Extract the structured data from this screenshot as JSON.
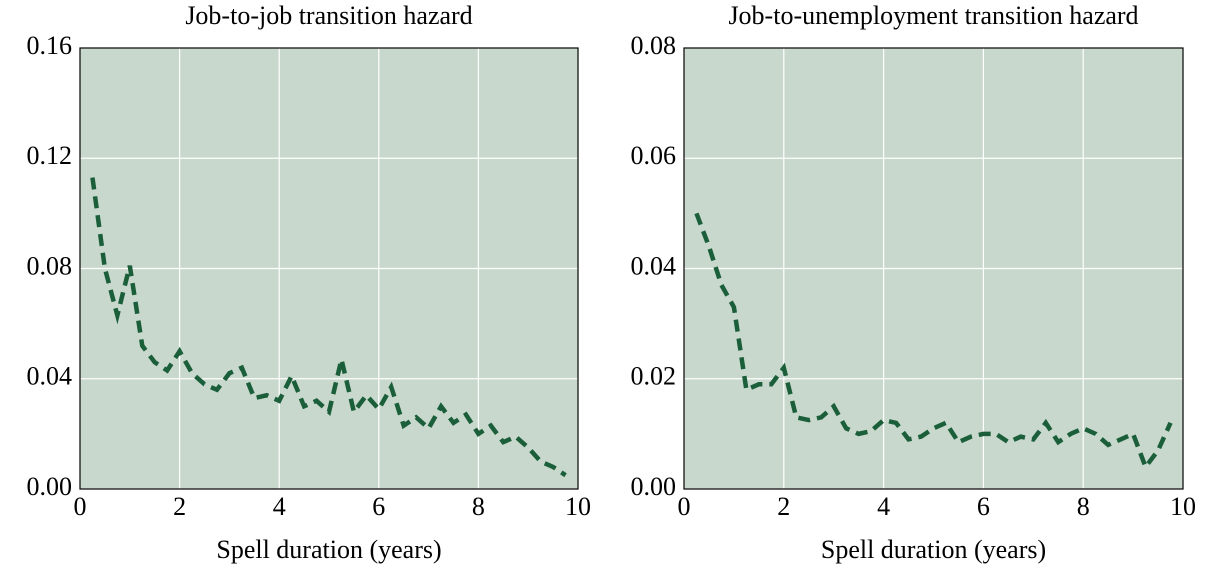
{
  "chart_data": [
    {
      "type": "line",
      "title": "Job-to-job transition hazard",
      "x_label": "Spell duration (years)",
      "x": [
        0.25,
        0.5,
        0.75,
        1,
        1.25,
        1.5,
        1.75,
        2,
        2.25,
        2.5,
        2.75,
        3,
        3.25,
        3.5,
        3.75,
        4,
        4.25,
        4.5,
        4.75,
        5,
        5.25,
        5.5,
        5.75,
        6,
        6.25,
        6.5,
        6.75,
        7,
        7.25,
        7.5,
        7.75,
        8,
        8.25,
        8.5,
        8.75,
        9,
        9.25,
        9.5,
        9.75
      ],
      "series": [
        {
          "color": "#1b5e3a",
          "values": [
            0.113,
            0.08,
            0.063,
            0.081,
            0.052,
            0.046,
            0.043,
            0.05,
            0.042,
            0.038,
            0.036,
            0.042,
            0.044,
            0.033,
            0.034,
            0.032,
            0.041,
            0.03,
            0.032,
            0.028,
            0.047,
            0.028,
            0.034,
            0.029,
            0.037,
            0.023,
            0.026,
            0.022,
            0.03,
            0.024,
            0.027,
            0.02,
            0.023,
            0.017,
            0.019,
            0.015,
            0.01,
            0.008,
            0.005
          ]
        }
      ],
      "xlim": [
        0,
        10
      ],
      "xticks": [
        0,
        2,
        4,
        6,
        8,
        10
      ],
      "ylim": [
        0,
        0.16
      ],
      "yticks": [
        {
          "value": 0,
          "label": "0.00"
        },
        0.04,
        0.08,
        0.12,
        0.16
      ],
      "grid": true
    },
    {
      "type": "line",
      "title": "Job-to-unemployment transition hazard",
      "x_label": "Spell duration (years)",
      "x": [
        0.25,
        0.5,
        0.75,
        1,
        1.25,
        1.5,
        1.75,
        2,
        2.25,
        2.5,
        2.75,
        3,
        3.25,
        3.5,
        3.75,
        4,
        4.25,
        4.5,
        4.75,
        5,
        5.25,
        5.5,
        5.75,
        6,
        6.25,
        6.5,
        6.75,
        7,
        7.25,
        7.5,
        7.75,
        8,
        8.25,
        8.5,
        8.75,
        9,
        9.25,
        9.5,
        9.75
      ],
      "series": [
        {
          "color": "#1b5e3a",
          "values": [
            0.05,
            0.044,
            0.037,
            0.033,
            0.018,
            0.019,
            0.019,
            0.022,
            0.013,
            0.0125,
            0.013,
            0.015,
            0.011,
            0.01,
            0.0105,
            0.0125,
            0.012,
            0.009,
            0.0095,
            0.011,
            0.012,
            0.0085,
            0.0095,
            0.01,
            0.01,
            0.0085,
            0.0095,
            0.009,
            0.012,
            0.0085,
            0.01,
            0.011,
            0.01,
            0.008,
            0.009,
            0.01,
            0.004,
            0.007,
            0.012
          ]
        }
      ],
      "xlim": [
        0,
        10
      ],
      "xticks": [
        0,
        2,
        4,
        6,
        8,
        10
      ],
      "ylim": [
        0,
        0.08
      ],
      "yticks": [
        {
          "value": 0,
          "label": "0.00"
        },
        0.02,
        0.04,
        0.06,
        0.08
      ],
      "grid": true
    }
  ]
}
